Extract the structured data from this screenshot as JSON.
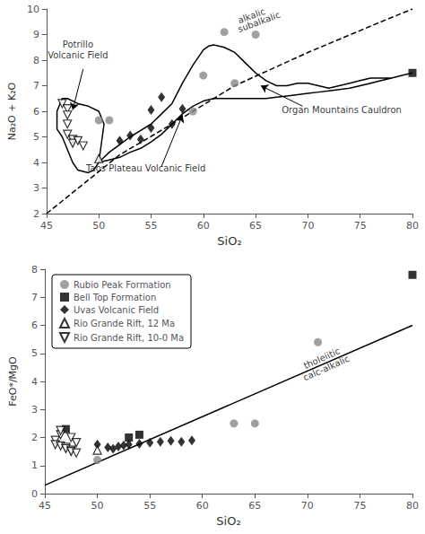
{
  "chart_data": [
    {
      "type": "scatter",
      "xlabel": "SiO₂",
      "ylabel": "Na₂O + K₂O",
      "xlim": [
        45,
        80
      ],
      "ylim": [
        2,
        10
      ],
      "xticks": [
        45,
        50,
        55,
        60,
        65,
        70,
        75,
        80
      ],
      "yticks": [
        2,
        3,
        4,
        5,
        6,
        7,
        8,
        9,
        10
      ],
      "grid": false,
      "series": [
        {
          "type": "line",
          "line_style": "dashed",
          "color": "#000000",
          "x": [
            45,
            52,
            57,
            63,
            70,
            77,
            80
          ],
          "values": [
            2.0,
            4.3,
            5.5,
            7.0,
            8.3,
            9.5,
            10.0
          ]
        },
        {
          "type": "line",
          "line_style": "solid",
          "color": "#000000",
          "x": [
            46,
            46,
            46.5,
            47,
            48,
            49,
            50,
            50.5,
            50,
            49.5,
            49,
            48,
            47.5,
            47,
            46.5,
            46
          ],
          "values": [
            5.3,
            6.0,
            6.5,
            6.5,
            6.3,
            6.2,
            6.0,
            5.5,
            4.0,
            3.7,
            3.6,
            3.7,
            4.0,
            4.5,
            5.0,
            5.3
          ]
        },
        {
          "type": "line",
          "line_style": "solid",
          "color": "#000000",
          "x": [
            50.0,
            50.5,
            51,
            52,
            53,
            54,
            55,
            56,
            57,
            58,
            59,
            59.5,
            60,
            60.5,
            61,
            62,
            63,
            64,
            65,
            66,
            67,
            68,
            69,
            70,
            71,
            72,
            73,
            74,
            75,
            76,
            77,
            78,
            79,
            80,
            80,
            79,
            78,
            77,
            76,
            75,
            74,
            73,
            72,
            71,
            70,
            69,
            68,
            67,
            66,
            65,
            64,
            63,
            62,
            61,
            60,
            59,
            58,
            57,
            56,
            55,
            54,
            53,
            52,
            51,
            50.5,
            50
          ],
          "values": [
            4.0,
            4.2,
            4.4,
            4.7,
            5.0,
            5.25,
            5.5,
            5.9,
            6.3,
            7.1,
            7.8,
            8.1,
            8.4,
            8.55,
            8.6,
            8.5,
            8.3,
            7.9,
            7.5,
            7.2,
            7.0,
            7.0,
            7.1,
            7.1,
            7.0,
            6.9,
            7.0,
            7.1,
            7.2,
            7.3,
            7.3,
            7.3,
            7.4,
            7.5,
            7.5,
            7.4,
            7.3,
            7.2,
            7.1,
            7.0,
            6.9,
            6.85,
            6.8,
            6.75,
            6.7,
            6.65,
            6.6,
            6.55,
            6.5,
            6.5,
            6.5,
            6.5,
            6.5,
            6.5,
            6.4,
            6.2,
            5.9,
            5.5,
            5.1,
            4.8,
            4.55,
            4.4,
            4.2,
            4.1,
            4.05,
            4.0
          ]
        },
        {
          "type": "scatter",
          "name": "Rubio Peak Formation",
          "marker": "circle",
          "color": "#888888",
          "x": [
            62,
            65,
            60,
            63,
            59,
            50,
            51
          ],
          "values": [
            9.1,
            9.0,
            7.4,
            7.1,
            6.0,
            5.65,
            5.65
          ]
        },
        {
          "type": "scatter",
          "name": "Bell Top Formation",
          "marker": "square",
          "color": "#000000",
          "x": [
            80
          ],
          "values": [
            7.5
          ]
        },
        {
          "type": "scatter",
          "name": "Uvas Volcanic Field",
          "marker": "diamond",
          "color": "#000000",
          "x": [
            52,
            53,
            54,
            55,
            55,
            56,
            57,
            58
          ],
          "values": [
            4.85,
            5.05,
            4.9,
            5.35,
            6.05,
            6.55,
            5.5,
            6.1
          ]
        },
        {
          "type": "scatter",
          "name": "Rio Grande Rift, 12 Ma",
          "marker": "open_triangle_up",
          "color": "#000000",
          "x": [
            50
          ],
          "values": [
            4.15
          ]
        },
        {
          "type": "scatter",
          "name": "Rio Grande Rift, 10-0 Ma",
          "marker": "open_triangle_down",
          "color": "#000000",
          "x": [
            46.5,
            47,
            47,
            47,
            47.5,
            47.5,
            48,
            48.5,
            47
          ],
          "values": [
            6.3,
            6.1,
            5.85,
            5.1,
            4.9,
            4.75,
            4.85,
            4.65,
            5.5
          ]
        }
      ],
      "annotations": [
        {
          "text": "alkalic",
          "x": 63.5,
          "y": 9.35
        },
        {
          "text": "subalkalic",
          "x": 63.5,
          "y": 9.0
        },
        {
          "text": "Potrillo\nVolcanic Field",
          "x": 48.0,
          "y": 8.0
        },
        {
          "text": "Organ Mountains Cauldron",
          "x": 67.5,
          "y": 5.85
        },
        {
          "text": "Taos Plateau Volcanic Field",
          "x": 54.5,
          "y": 3.55
        }
      ],
      "arrows": [
        {
          "from": [
            69.5,
            6.2
          ],
          "to": [
            65.5,
            7.0
          ]
        },
        {
          "from": [
            56.0,
            3.85
          ],
          "to": [
            58.0,
            5.85
          ]
        },
        {
          "from": [
            48.5,
            7.65
          ],
          "to": [
            47.5,
            6.05
          ]
        }
      ]
    },
    {
      "type": "scatter",
      "xlabel": "SiO₂",
      "ylabel": "FeO*/MgO",
      "xlim": [
        45,
        80
      ],
      "ylim": [
        0,
        8
      ],
      "xticks": [
        45,
        50,
        55,
        60,
        65,
        70,
        75,
        80
      ],
      "yticks": [
        0,
        1,
        2,
        3,
        4,
        5,
        6,
        7,
        8
      ],
      "grid": false,
      "legend": "upper left",
      "series": [
        {
          "type": "line",
          "line_style": "solid",
          "color": "#000000",
          "x": [
            45,
            80
          ],
          "values": [
            0.3,
            6.0
          ]
        },
        {
          "type": "scatter",
          "name": "Rubio Peak Formation",
          "marker": "circle",
          "color": "#888888",
          "x": [
            50,
            63,
            65,
            71
          ],
          "values": [
            1.2,
            2.5,
            2.5,
            5.4
          ]
        },
        {
          "type": "scatter",
          "name": "Bell Top Formation",
          "marker": "square",
          "color": "#000000",
          "x": [
            47,
            53,
            54,
            80
          ],
          "values": [
            2.3,
            2.0,
            2.1,
            7.8
          ]
        },
        {
          "type": "scatter",
          "name": "Uvas Volcanic Field",
          "marker": "diamond",
          "color": "#000000",
          "x": [
            50,
            51,
            51.5,
            52,
            52.5,
            53,
            54,
            55,
            56,
            57,
            58,
            59
          ],
          "values": [
            1.75,
            1.65,
            1.6,
            1.68,
            1.72,
            1.75,
            1.78,
            1.82,
            1.85,
            1.88,
            1.85,
            1.9
          ]
        },
        {
          "type": "scatter",
          "name": "Rio Grande Rift, 12 Ma",
          "marker": "open_triangle_up",
          "color": "#000000",
          "x": [
            50
          ],
          "values": [
            1.55
          ]
        },
        {
          "type": "scatter",
          "name": "Rio Grande Rift, 10-0 Ma",
          "marker": "open_triangle_down",
          "color": "#000000",
          "x": [
            46,
            46,
            46.5,
            47,
            47,
            47.5,
            47.5,
            48,
            46.5,
            46.5,
            47.5,
            48
          ],
          "values": [
            1.9,
            1.75,
            1.7,
            1.65,
            1.6,
            1.55,
            1.5,
            1.45,
            2.1,
            2.25,
            2.0,
            1.82
          ]
        }
      ],
      "annotations": [
        {
          "text": "tholeiitic\ncalc-alkalic",
          "x": 72,
          "y": 4.3
        }
      ]
    }
  ]
}
